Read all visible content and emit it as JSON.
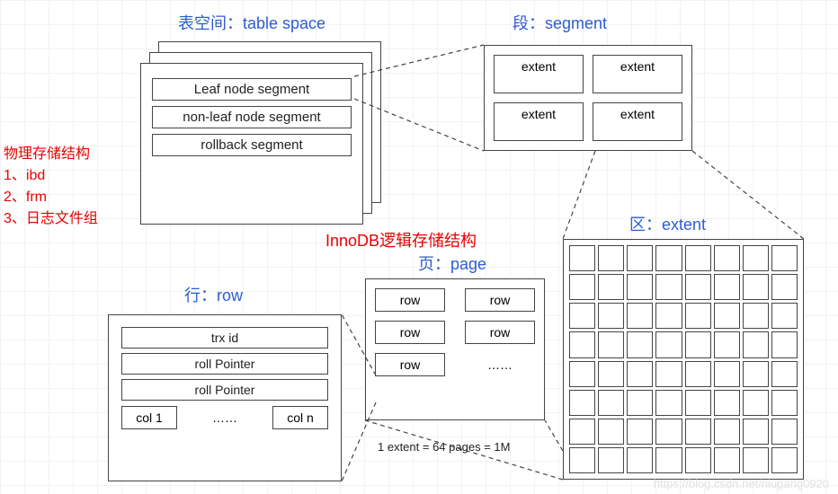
{
  "colors": {
    "title": "#2d5dd1",
    "red": "#e80000",
    "border": "#444444",
    "grid": "#f2f2f2",
    "bg": "#ffffff"
  },
  "titles": {
    "tablespace": "表空间：table space",
    "segment": "段：segment",
    "extent": "区：extent",
    "page": "页：page",
    "row": "行：row",
    "center": "InnoDB逻辑存储结构"
  },
  "physical": {
    "heading": "物理存储结构",
    "items": [
      "1、ibd",
      "2、frm",
      "3、日志文件组"
    ]
  },
  "tablespace_items": [
    "Leaf node segment",
    "non-leaf node segment",
    "rollback segment"
  ],
  "segment_items": [
    "extent",
    "extent",
    "extent",
    "extent"
  ],
  "page_items": [
    "row",
    "row",
    "row",
    "row",
    "row"
  ],
  "page_more": "……",
  "page_caption": "1 extent = 64 pages = 1M",
  "row_items": [
    "trx id",
    "roll Pointer",
    "roll Pointer"
  ],
  "row_cols": {
    "first": "col 1",
    "mid": "……",
    "last": "col n"
  },
  "extent_grid": {
    "rows": 8,
    "cols": 8
  },
  "watermark": "https://blog.csdn.net/niugang0920"
}
